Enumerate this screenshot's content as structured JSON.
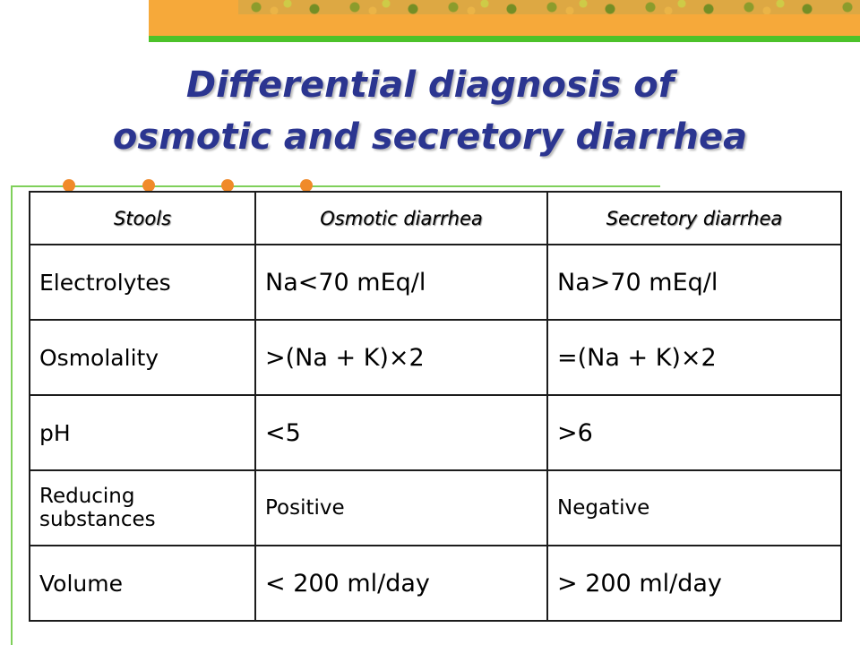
{
  "slide": {
    "title_line1": "Differential diagnosis of",
    "title_line2": "osmotic and secretory diarrhea"
  },
  "colors": {
    "title": "#2b3590",
    "banner": "#f6a93a",
    "stripe": "#4cc22a",
    "dots": "#f08a2a"
  },
  "table": {
    "headers": [
      "Stools",
      "Osmotic diarrhea",
      "Secretory diarrhea"
    ],
    "rows": [
      [
        "Electrolytes",
        "Na<70 mEq/l",
        "Na>70 mEq/l"
      ],
      [
        "Osmolality",
        ">(Na + K)×2",
        "=(Na + K)×2"
      ],
      [
        "pH",
        "<5",
        ">6"
      ],
      [
        "Reducing substances",
        "Positive",
        "Negative"
      ],
      [
        "Volume",
        "< 200 ml/day",
        "> 200 ml/day"
      ]
    ]
  }
}
